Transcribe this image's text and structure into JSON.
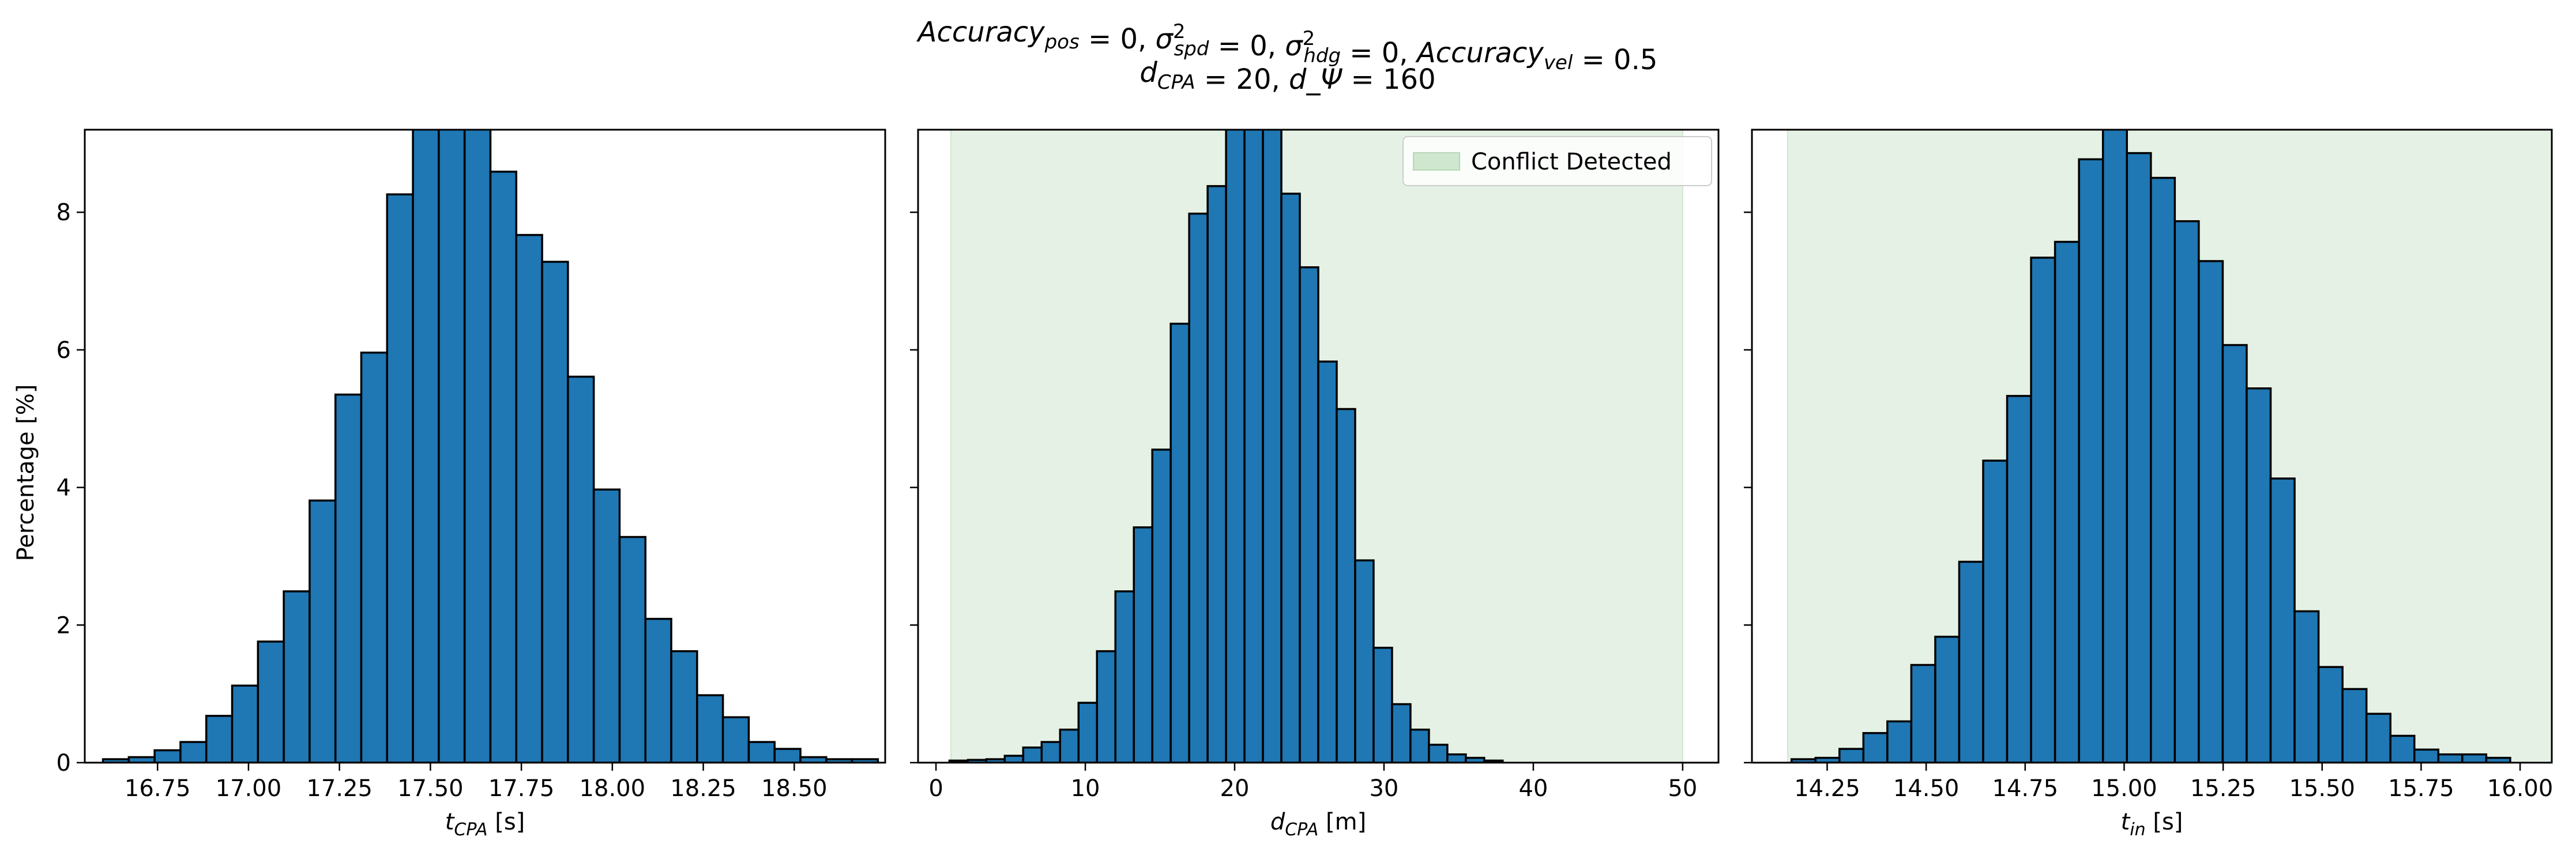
{
  "figure": {
    "title_line1": "Accuracy_pos = 0, σ²_spd = 0, σ²_hdg = 0, Accuracy_vel = 0.5",
    "title_line2": "d_CPA = 20, d_Ψ = 160"
  },
  "colors": {
    "bar_fill": "#1f77b4",
    "bar_edge": "#000000",
    "conflict_region": "#cfe6cf"
  },
  "chart_data": [
    {
      "type": "bar",
      "panel": "left",
      "xlabel": "t_CPA [s]",
      "ylabel": "Percentage [%]",
      "xlim": [
        16.55,
        18.75
      ],
      "ylim": [
        0,
        9.2
      ],
      "xticks": [
        16.75,
        17.0,
        17.25,
        17.5,
        17.75,
        18.0,
        18.25,
        18.5
      ],
      "xtick_labels": [
        "16.75",
        "17.00",
        "17.25",
        "17.50",
        "17.75",
        "18.00",
        "18.25",
        "18.50"
      ],
      "yticks": [
        0,
        2,
        4,
        6,
        8
      ],
      "ytick_labels": [
        "0",
        "2",
        "4",
        "6",
        "8"
      ],
      "bin_start": 16.6,
      "bin_width": 0.071,
      "values": [
        0.05,
        0.08,
        0.18,
        0.3,
        0.68,
        1.12,
        1.76,
        2.49,
        3.81,
        5.35,
        5.96,
        8.26,
        9.9,
        10.1,
        9.7,
        8.59,
        7.67,
        7.28,
        5.61,
        3.97,
        3.28,
        2.09,
        1.62,
        0.98,
        0.66,
        0.3,
        0.2,
        0.08,
        0.05,
        0.05
      ]
    },
    {
      "type": "bar",
      "panel": "middle",
      "xlabel": "d_CPA [m]",
      "xlim": [
        -1.2,
        52.4
      ],
      "ylim": [
        0,
        9.2
      ],
      "xticks": [
        0,
        10,
        20,
        30,
        40,
        50
      ],
      "xtick_labels": [
        "0",
        "10",
        "20",
        "30",
        "40",
        "50"
      ],
      "yticks": [
        0,
        2,
        4,
        6,
        8
      ],
      "shaded_region": [
        1.0,
        50.0
      ],
      "legend": {
        "position": "top-right",
        "label": "Conflict Detected"
      },
      "bin_start": 0.9,
      "bin_width": 1.235,
      "values": [
        0.03,
        0.04,
        0.05,
        0.1,
        0.22,
        0.3,
        0.48,
        0.87,
        1.62,
        2.49,
        3.42,
        4.55,
        6.38,
        7.98,
        8.38,
        9.5,
        9.6,
        9.5,
        8.27,
        7.2,
        5.83,
        5.14,
        2.94,
        1.67,
        0.85,
        0.48,
        0.26,
        0.12,
        0.07,
        0.03
      ]
    },
    {
      "type": "bar",
      "panel": "right",
      "xlabel": "t_in [s]",
      "xlim": [
        14.06,
        16.08
      ],
      "ylim": [
        0,
        9.2
      ],
      "xticks": [
        14.25,
        14.5,
        14.75,
        15.0,
        15.25,
        15.5,
        15.75,
        16.0
      ],
      "xtick_labels": [
        "14.25",
        "14.50",
        "14.75",
        "15.00",
        "15.25",
        "15.50",
        "15.75",
        "16.00"
      ],
      "yticks": [
        0,
        2,
        4,
        6,
        8
      ],
      "shaded_region": [
        14.15,
        16.1
      ],
      "bin_start": 14.16,
      "bin_width": 0.0605,
      "values": [
        0.05,
        0.07,
        0.2,
        0.43,
        0.6,
        1.42,
        1.83,
        2.92,
        4.39,
        5.33,
        7.34,
        7.57,
        8.77,
        9.4,
        8.86,
        8.5,
        7.87,
        7.29,
        6.07,
        5.44,
        4.13,
        2.2,
        1.39,
        1.07,
        0.71,
        0.39,
        0.19,
        0.12,
        0.12,
        0.07
      ]
    }
  ]
}
